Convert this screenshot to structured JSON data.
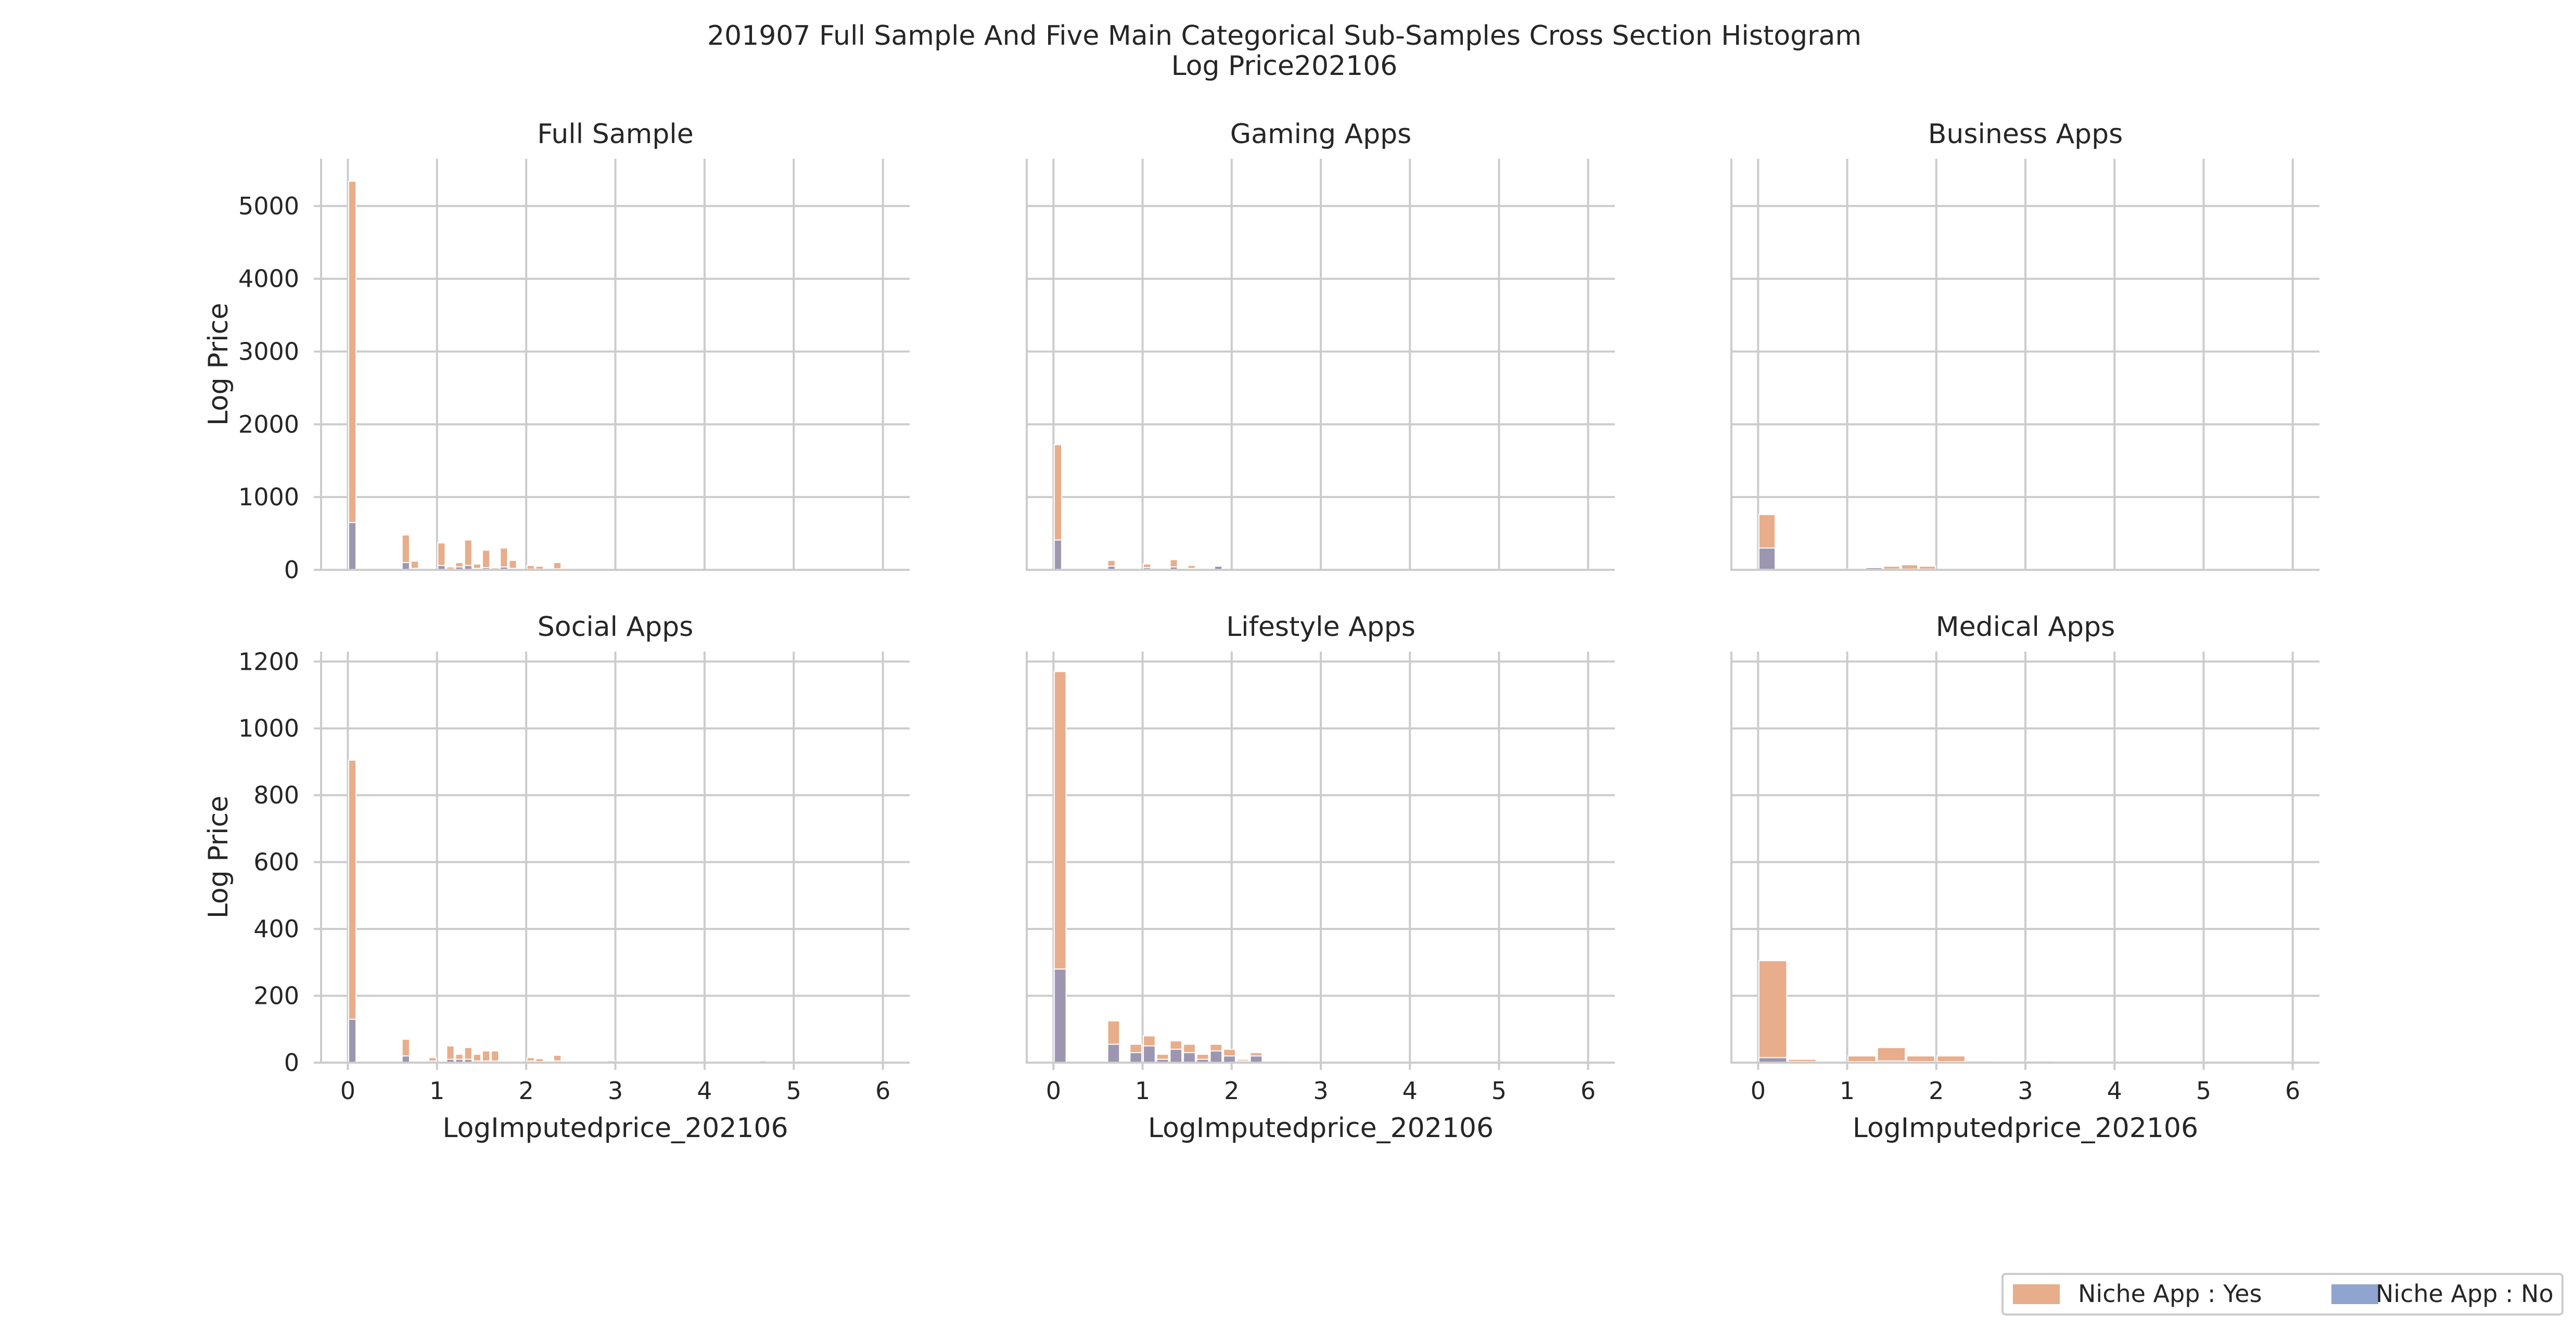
{
  "chart_data": {
    "type": "bar",
    "title_line1": "201907 Full Sample And Five Main Categorical Sub-Samples Cross Section Histogram",
    "title_line2": "Log Price202106",
    "xlabel": "LogImputedprice_202106",
    "ylabel": "Log Price",
    "xlim": [
      -0.3,
      6.3
    ],
    "xticks": [
      "0",
      "1",
      "2",
      "3",
      "4",
      "5",
      "6"
    ],
    "grid": true,
    "legend_position": "bottom-right",
    "legend": [
      {
        "label": "Niche App : Yes",
        "color": "#e8ad8a"
      },
      {
        "label": "Niche App : No",
        "color": "#8fa5d0"
      }
    ],
    "series_colors": {
      "yes": "#e8ad8a",
      "no": "#8fa5d0",
      "overlap": "#9c96b1"
    },
    "row_yticks": [
      [
        "0",
        "1000",
        "2000",
        "3000",
        "4000",
        "5000"
      ],
      [
        "0",
        "200",
        "400",
        "600",
        "800",
        "1000",
        "1200"
      ]
    ],
    "row_ylim": [
      [
        0,
        5650
      ],
      [
        0,
        1230
      ]
    ],
    "panels": [
      {
        "title": "Full Sample",
        "bin_width": 0.1,
        "bins": [
          {
            "x": 0.0,
            "yes": 5340,
            "no": 650
          },
          {
            "x": 0.6,
            "yes": 480,
            "no": 100
          },
          {
            "x": 0.7,
            "yes": 120,
            "no": 20
          },
          {
            "x": 1.0,
            "yes": 370,
            "no": 60
          },
          {
            "x": 1.1,
            "yes": 40,
            "no": 10
          },
          {
            "x": 1.2,
            "yes": 100,
            "no": 40
          },
          {
            "x": 1.3,
            "yes": 410,
            "no": 60
          },
          {
            "x": 1.4,
            "yes": 80,
            "no": 20
          },
          {
            "x": 1.5,
            "yes": 270,
            "no": 30
          },
          {
            "x": 1.6,
            "yes": 30,
            "no": 10
          },
          {
            "x": 1.7,
            "yes": 300,
            "no": 40
          },
          {
            "x": 1.8,
            "yes": 130,
            "no": 20
          },
          {
            "x": 2.0,
            "yes": 60,
            "no": 10
          },
          {
            "x": 2.1,
            "yes": 50,
            "no": 10
          },
          {
            "x": 2.3,
            "yes": 100,
            "no": 15
          },
          {
            "x": 2.6,
            "yes": 30,
            "no": 20
          }
        ]
      },
      {
        "title": "Gaming Apps",
        "bin_width": 0.1,
        "bins": [
          {
            "x": 0.0,
            "yes": 1720,
            "no": 410
          },
          {
            "x": 0.6,
            "yes": 130,
            "no": 50
          },
          {
            "x": 1.0,
            "yes": 80,
            "no": 30
          },
          {
            "x": 1.3,
            "yes": 140,
            "no": 40
          },
          {
            "x": 1.5,
            "yes": 60,
            "no": 20
          },
          {
            "x": 1.8,
            "yes": 60,
            "no": 50
          }
        ]
      },
      {
        "title": "Business Apps",
        "bin_width": 0.2,
        "bins": [
          {
            "x": 0.0,
            "yes": 760,
            "no": 300
          },
          {
            "x": 0.6,
            "yes": 30,
            "no": 20
          },
          {
            "x": 1.0,
            "yes": 20,
            "no": 10
          },
          {
            "x": 1.2,
            "yes": 40,
            "no": 30
          },
          {
            "x": 1.4,
            "yes": 50,
            "no": 10
          },
          {
            "x": 1.6,
            "yes": 70,
            "no": 10
          },
          {
            "x": 1.8,
            "yes": 50,
            "no": 10
          }
        ]
      },
      {
        "title": "Social Apps",
        "bin_width": 0.1,
        "bins": [
          {
            "x": 0.0,
            "yes": 905,
            "no": 130
          },
          {
            "x": 0.6,
            "yes": 70,
            "no": 20
          },
          {
            "x": 0.9,
            "yes": 15,
            "no": 5
          },
          {
            "x": 1.1,
            "yes": 50,
            "no": 10
          },
          {
            "x": 1.2,
            "yes": 25,
            "no": 10
          },
          {
            "x": 1.3,
            "yes": 45,
            "no": 10
          },
          {
            "x": 1.4,
            "yes": 25,
            "no": 5
          },
          {
            "x": 1.5,
            "yes": 35,
            "no": 5
          },
          {
            "x": 1.6,
            "yes": 35,
            "no": 5
          },
          {
            "x": 2.0,
            "yes": 15,
            "no": 5
          },
          {
            "x": 2.1,
            "yes": 12,
            "no": 3
          },
          {
            "x": 2.3,
            "yes": 22,
            "no": 5
          },
          {
            "x": 2.9,
            "yes": 6,
            "no": 2
          },
          {
            "x": 4.6,
            "yes": 6,
            "no": 2
          }
        ]
      },
      {
        "title": "Lifestyle Apps",
        "bin_width": 0.15,
        "bins": [
          {
            "x": 0.0,
            "yes": 1170,
            "no": 280
          },
          {
            "x": 0.6,
            "yes": 125,
            "no": 55
          },
          {
            "x": 0.85,
            "yes": 55,
            "no": 30
          },
          {
            "x": 1.0,
            "yes": 80,
            "no": 50
          },
          {
            "x": 1.15,
            "yes": 25,
            "no": 10
          },
          {
            "x": 1.3,
            "yes": 65,
            "no": 40
          },
          {
            "x": 1.45,
            "yes": 55,
            "no": 30
          },
          {
            "x": 1.6,
            "yes": 25,
            "no": 10
          },
          {
            "x": 1.75,
            "yes": 55,
            "no": 35
          },
          {
            "x": 1.9,
            "yes": 40,
            "no": 20
          },
          {
            "x": 2.05,
            "yes": 10,
            "no": 5
          },
          {
            "x": 2.2,
            "yes": 30,
            "no": 20
          },
          {
            "x": 2.5,
            "yes": 5,
            "no": 2
          }
        ]
      },
      {
        "title": "Medical Apps",
        "bin_width": 0.33,
        "bins": [
          {
            "x": 0.0,
            "yes": 305,
            "no": 15
          },
          {
            "x": 0.33,
            "yes": 10,
            "no": 3
          },
          {
            "x": 1.0,
            "yes": 20,
            "no": 3
          },
          {
            "x": 1.33,
            "yes": 45,
            "no": 5
          },
          {
            "x": 1.66,
            "yes": 20,
            "no": 3
          },
          {
            "x": 2.0,
            "yes": 20,
            "no": 3
          },
          {
            "x": 2.33,
            "yes": 5,
            "no": 1
          },
          {
            "x": 3.0,
            "yes": 5,
            "no": 1
          }
        ]
      }
    ]
  }
}
